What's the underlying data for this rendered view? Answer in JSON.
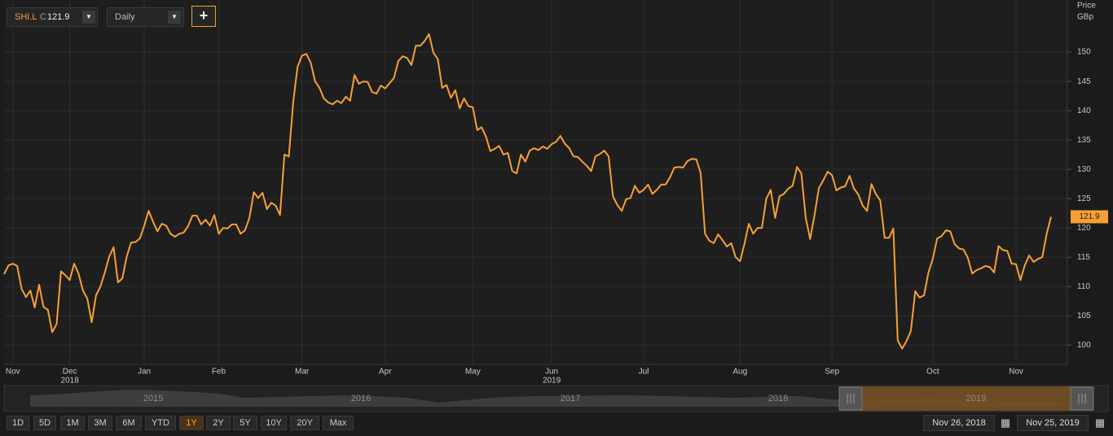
{
  "toolbar": {
    "symbol": "SHI.L",
    "close_label": "C",
    "interval": "Daily"
  },
  "chart_data": {
    "type": "line",
    "y_axis_title": "Price",
    "y_axis_unit": "GBp",
    "last_price": 121.9,
    "color": "#f7a035",
    "grid": true,
    "axis_side": "right",
    "ylim": [
      96.7,
      158.9
    ],
    "yticks": [
      100,
      105,
      110,
      115,
      120,
      125,
      130,
      135,
      140,
      145,
      150
    ],
    "x_group_labels": [
      {
        "label": "2018",
        "under": "Dec"
      },
      {
        "label": "2019",
        "under": "Jun"
      }
    ],
    "categories": [
      null,
      null,
      "Nov",
      null,
      null,
      null,
      null,
      null,
      null,
      null,
      null,
      null,
      null,
      null,
      null,
      "Dec",
      null,
      null,
      null,
      null,
      null,
      null,
      null,
      null,
      null,
      null,
      null,
      null,
      null,
      null,
      null,
      null,
      "Jan",
      null,
      null,
      null,
      null,
      null,
      null,
      null,
      null,
      null,
      null,
      null,
      null,
      null,
      null,
      null,
      null,
      "Feb",
      null,
      null,
      null,
      null,
      null,
      null,
      null,
      null,
      null,
      null,
      null,
      null,
      null,
      null,
      null,
      null,
      null,
      null,
      "Mar",
      null,
      null,
      null,
      null,
      null,
      null,
      null,
      null,
      null,
      null,
      null,
      null,
      null,
      null,
      null,
      null,
      null,
      null,
      "Apr",
      null,
      null,
      null,
      null,
      null,
      null,
      null,
      null,
      null,
      null,
      null,
      null,
      null,
      null,
      null,
      null,
      null,
      null,
      null,
      "May",
      null,
      null,
      null,
      null,
      null,
      null,
      null,
      null,
      null,
      null,
      null,
      null,
      null,
      null,
      null,
      null,
      null,
      "Jun",
      null,
      null,
      null,
      null,
      null,
      null,
      null,
      null,
      null,
      null,
      null,
      null,
      null,
      null,
      null,
      null,
      null,
      null,
      null,
      null,
      "Jul",
      null,
      null,
      null,
      null,
      null,
      null,
      null,
      null,
      null,
      null,
      null,
      null,
      null,
      null,
      null,
      null,
      null,
      null,
      null,
      null,
      null,
      "Aug",
      null,
      null,
      null,
      null,
      null,
      null,
      null,
      null,
      null,
      null,
      null,
      null,
      null,
      null,
      null,
      null,
      null,
      null,
      null,
      null,
      "Sep",
      null,
      null,
      null,
      null,
      null,
      null,
      null,
      null,
      null,
      null,
      null,
      null,
      null,
      null,
      null,
      null,
      null,
      null,
      null,
      null,
      null,
      null,
      "Oct",
      null,
      null,
      null,
      null,
      null,
      null,
      null,
      null,
      null,
      null,
      null,
      null,
      null,
      null,
      null,
      null,
      null,
      null,
      "Nov",
      null,
      null,
      null,
      null,
      null,
      null,
      null,
      null
    ],
    "values": [
      112.1,
      113.6,
      113.9,
      113.5,
      109.6,
      108.2,
      109.3,
      106.4,
      110.3,
      106.5,
      106,
      102.2,
      103.6,
      112.6,
      111.9,
      111.1,
      113.9,
      112.2,
      109.3,
      107.9,
      103.9,
      108.5,
      110,
      112.4,
      115.1,
      116.7,
      110.7,
      111.4,
      115.1,
      117.5,
      117.6,
      118.2,
      120.4,
      122.9,
      121.1,
      119.4,
      120.7,
      120.4,
      119,
      118.5,
      119,
      119.2,
      120.3,
      122.1,
      122.1,
      120.6,
      121.4,
      120.4,
      122.2,
      119,
      120,
      119.9,
      120.6,
      120.6,
      119,
      119.6,
      121.7,
      126.1,
      125.1,
      126,
      123.2,
      124.3,
      123.8,
      122.2,
      132.5,
      132.2,
      141.5,
      147.5,
      149.4,
      149.7,
      148.2,
      145,
      143.9,
      142.1,
      141.4,
      141.1,
      141.7,
      141.3,
      142.4,
      141.7,
      146.1,
      144.6,
      145,
      144.9,
      143.2,
      142.9,
      144.3,
      143.8,
      144.7,
      145.6,
      148.5,
      149.3,
      149,
      147.8,
      151.1,
      151.1,
      151.9,
      153.1,
      149.9,
      148.8,
      143.9,
      144.4,
      142.2,
      143.5,
      140.4,
      142.1,
      140.8,
      140.6,
      136.7,
      137.2,
      135.6,
      133.1,
      133.5,
      134,
      132.5,
      132.8,
      129.7,
      129.3,
      132.5,
      131.3,
      133.2,
      133.6,
      133.3,
      133.9,
      133.5,
      134.3,
      134.7,
      135.7,
      134.4,
      133.6,
      132.2,
      132.1,
      131.3,
      130.6,
      129.7,
      132.2,
      132.6,
      133.2,
      132.2,
      125.4,
      123.9,
      122.9,
      124.9,
      125.1,
      127.2,
      126,
      126.5,
      127.4,
      125.8,
      126.5,
      127.4,
      127.4,
      128.6,
      130.3,
      130.4,
      130.3,
      131.4,
      131.8,
      131.7,
      129.4,
      119,
      117.8,
      117.4,
      118.9,
      117.9,
      116.8,
      117.4,
      115,
      114.3,
      117.2,
      120.7,
      119,
      120,
      120,
      125,
      126.5,
      121.7,
      125.4,
      125.8,
      126.7,
      127.2,
      130.4,
      129.3,
      121.7,
      118.1,
      122.2,
      126.8,
      128.1,
      129.6,
      129,
      126.4,
      126.9,
      127.1,
      128.9,
      126.7,
      125.7,
      123.8,
      122.9,
      127.5,
      125.8,
      124.7,
      118.3,
      118.3,
      119.9,
      100.8,
      99.4,
      100.7,
      102.4,
      109.2,
      108.1,
      108.5,
      112.4,
      114.7,
      118.2,
      118.6,
      119.6,
      119.4,
      117.2,
      116.5,
      116.3,
      114.9,
      112.2,
      112.8,
      113.1,
      113.5,
      113.3,
      112.4,
      116.9,
      116.2,
      116.1,
      113.9,
      113.8,
      111.1,
      113.6,
      115.3,
      114.2,
      114.7,
      115,
      119,
      121.9
    ]
  },
  "navigator": {
    "years": [
      "2015",
      "2016",
      "2017",
      "2018",
      "2019"
    ]
  },
  "range_buttons": [
    "1D",
    "5D",
    "1M",
    "3M",
    "6M",
    "YTD",
    "1Y",
    "2Y",
    "5Y",
    "10Y",
    "20Y",
    "Max"
  ],
  "active_range": "1Y",
  "date_range": {
    "from": "Nov 26, 2018",
    "to": "Nov 25, 2019"
  }
}
